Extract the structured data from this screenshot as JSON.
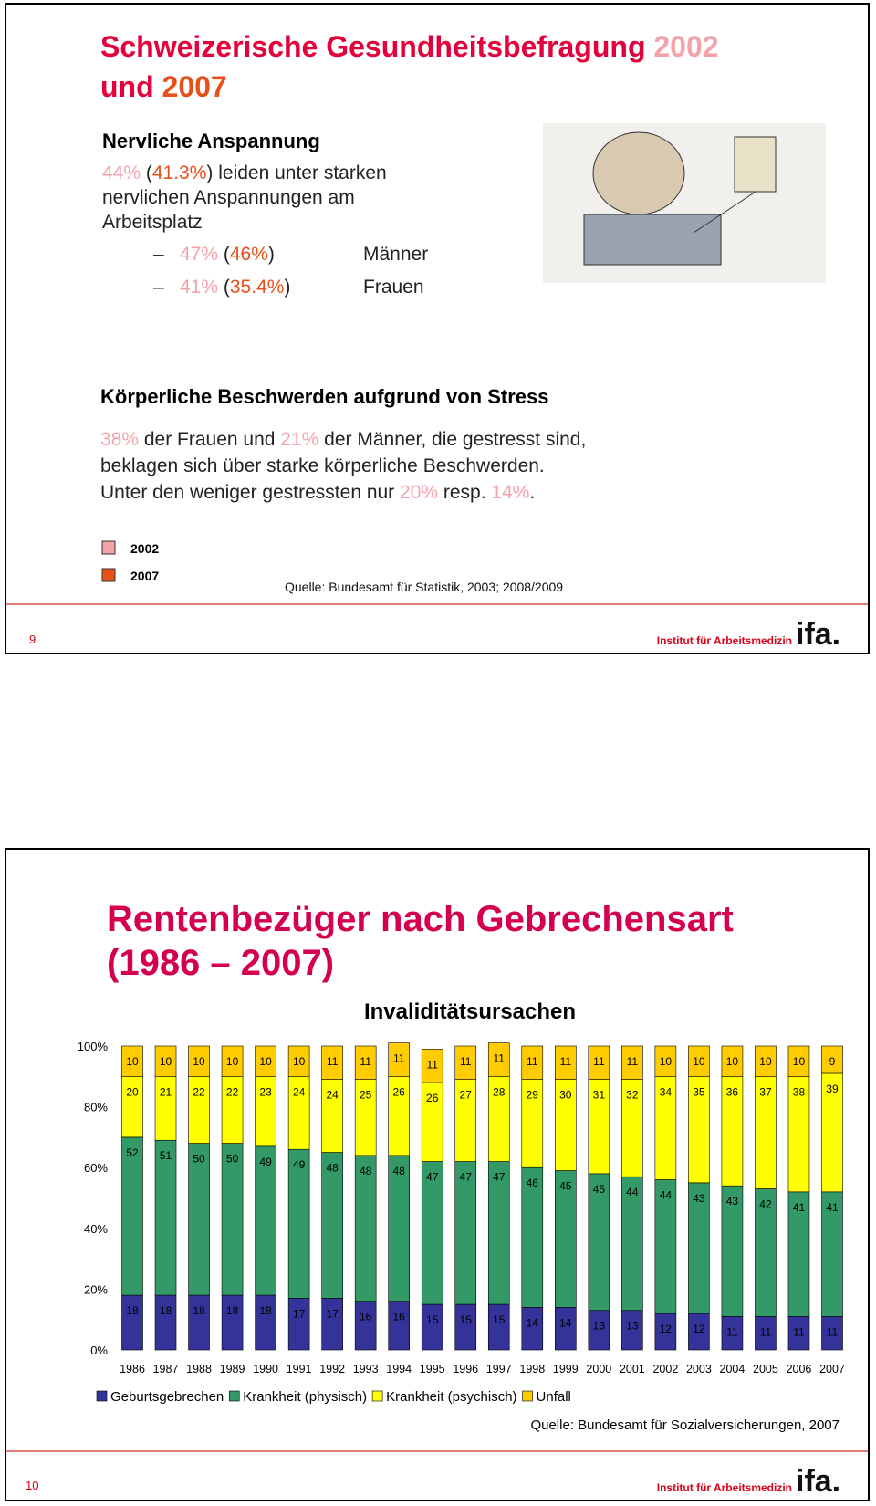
{
  "slides": [
    {
      "title": [
        [
          {
            "text": "Schweizerische Gesundheitsbefragung "
          },
          {
            "text": "2002",
            "color": "#f3a3aa"
          }
        ],
        [
          {
            "text": "und "
          },
          {
            "text": "2007",
            "color": "#e8501a"
          }
        ]
      ],
      "section1": {
        "heading": "Nervliche Anspannung",
        "lines": [
          [
            {
              "text": "44%",
              "color": "#f3a3aa"
            },
            {
              "text": " ("
            },
            {
              "text": "41.3%",
              "color": "#e8501a"
            },
            {
              "text": ") leiden unter starken"
            }
          ],
          [
            {
              "text": "nervlichen Anspannungen am"
            }
          ],
          [
            {
              "text": "Arbeitsplatz"
            }
          ]
        ],
        "bullet": "–",
        "bullets": [
          {
            "value": [
              {
                "text": "47%",
                "color": "#f3a3aa"
              },
              {
                "text": " ("
              },
              {
                "text": "46%",
                "color": "#e8501a"
              },
              {
                "text": ")"
              }
            ],
            "label": "Männer"
          },
          {
            "value": [
              {
                "text": "41%",
                "color": "#f3a3aa"
              },
              {
                "text": " ("
              },
              {
                "text": "35.4%",
                "color": "#e8501a"
              },
              {
                "text": ")"
              }
            ],
            "label": "Frauen"
          }
        ]
      },
      "section2": {
        "heading": "Körperliche Beschwerden aufgrund von Stress",
        "lines": [
          [
            {
              "text": "38%",
              "color": "#f3a3aa"
            },
            {
              "text": " der Frauen und "
            },
            {
              "text": "21%",
              "color": "#f3a3aa"
            },
            {
              "text": " der Männer, die gestresst sind,"
            }
          ],
          [
            {
              "text": "beklagen sich über starke körperliche Beschwerden."
            }
          ],
          [
            {
              "text": "Unter den weniger gestressten nur "
            },
            {
              "text": "20%",
              "color": "#f3a3aa"
            },
            {
              "text": " resp. "
            },
            {
              "text": "14%",
              "color": "#f3a3aa"
            },
            {
              "text": "."
            }
          ]
        ]
      },
      "legend": [
        {
          "label": "2002",
          "color": "#f3a3aa"
        },
        {
          "label": "2007",
          "color": "#e8501a"
        }
      ],
      "source": "Quelle: Bundesamt für Statistik, 2003; 2008/2009",
      "page_number": "9",
      "logo": {
        "text": "Institut für Arbeitsmedizin",
        "brand": "ifa."
      }
    },
    {
      "title": [
        "Rentenbezüger nach Gebrechensart",
        "(1986 – 2007)"
      ],
      "page_number": "10",
      "logo": {
        "text": "Institut für Arbeitsmedizin",
        "brand": "ifa."
      }
    }
  ],
  "chart_data": {
    "type": "stacked_bar",
    "title": "Invaliditätsursachen",
    "categories": [
      "1986",
      "1987",
      "1988",
      "1989",
      "1990",
      "1991",
      "1992",
      "1993",
      "1994",
      "1995",
      "1996",
      "1997",
      "1998",
      "1999",
      "2000",
      "2001",
      "2002",
      "2003",
      "2004",
      "2005",
      "2006",
      "2007"
    ],
    "series": [
      {
        "name": "Geburtsgebrechen",
        "color": "#333399",
        "values": [
          18,
          18,
          18,
          18,
          18,
          17,
          17,
          16,
          16,
          15,
          15,
          15,
          14,
          14,
          13,
          13,
          12,
          12,
          11,
          11,
          11,
          11
        ]
      },
      {
        "name": "Krankheit (physisch)",
        "color": "#339966",
        "values": [
          52,
          51,
          50,
          50,
          49,
          49,
          48,
          48,
          48,
          47,
          47,
          47,
          46,
          45,
          45,
          44,
          44,
          43,
          43,
          42,
          41,
          41
        ]
      },
      {
        "name": "Krankheit (psychisch)",
        "color": "#ffff00",
        "values": [
          20,
          21,
          22,
          22,
          23,
          24,
          24,
          25,
          26,
          26,
          27,
          28,
          29,
          30,
          31,
          32,
          34,
          35,
          36,
          37,
          38,
          39
        ]
      },
      {
        "name": "Unfall",
        "color": "#ffcc00",
        "values": [
          10,
          10,
          10,
          10,
          10,
          10,
          11,
          11,
          11,
          11,
          11,
          11,
          11,
          11,
          11,
          11,
          10,
          10,
          10,
          10,
          10,
          9
        ]
      }
    ],
    "ylim": [
      0,
      100
    ],
    "yticks": [
      {
        "value": 0,
        "label": "0%"
      },
      {
        "value": 20,
        "label": "20%"
      },
      {
        "value": 40,
        "label": "40%"
      },
      {
        "value": 60,
        "label": "60%"
      },
      {
        "value": 80,
        "label": "80%"
      },
      {
        "value": 100,
        "label": "100%"
      }
    ],
    "source": "Quelle: Bundesamt für Sozialversicherungen, 2007"
  }
}
